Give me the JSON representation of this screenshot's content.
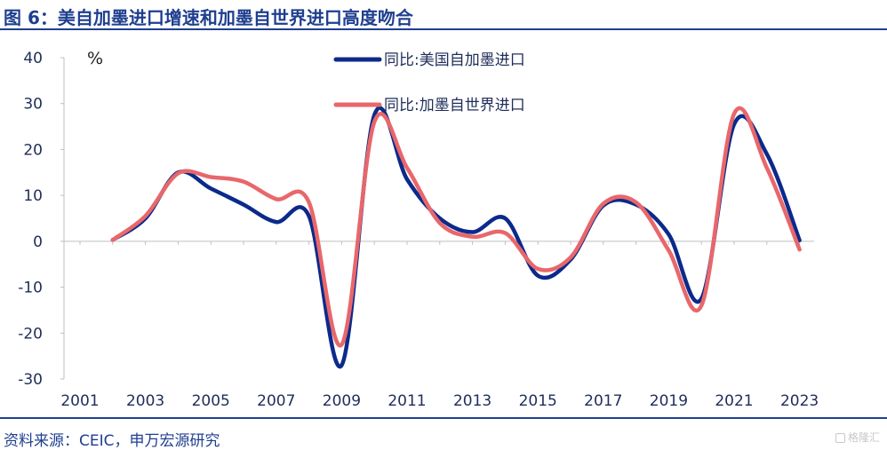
{
  "header": {
    "title": "图 6：美自加墨进口增速和加墨自世界进口高度吻合"
  },
  "footer": {
    "source": "资料来源：CEIC，申万宏源研究",
    "watermark": "格隆汇"
  },
  "colors": {
    "series1": "#0b2a8a",
    "series2": "#e8676b",
    "brand": "#1f3f8f",
    "axis": "#bfbfbf",
    "text": "#1f2d5a"
  },
  "chart_data": {
    "type": "line",
    "title": "",
    "xlabel": "",
    "ylabel": "%",
    "ylim": [
      -30,
      40
    ],
    "yticks": [
      40,
      30,
      20,
      10,
      0,
      -10,
      -20,
      -30
    ],
    "xlim": [
      2001,
      2023
    ],
    "xticks": [
      2001,
      2003,
      2005,
      2007,
      2009,
      2011,
      2013,
      2015,
      2017,
      2019,
      2021,
      2023
    ],
    "grid": false,
    "legend_position": "top",
    "x": [
      2002,
      2003,
      2004,
      2005,
      2006,
      2007,
      2008,
      2009,
      2010,
      2011,
      2012,
      2013,
      2014,
      2015,
      2016,
      2017,
      2018,
      2019,
      2020,
      2021,
      2022,
      2023
    ],
    "series": [
      {
        "name": "同比:美国自加墨进口",
        "values": [
          0.3,
          5.0,
          15.0,
          11.5,
          8.0,
          4.2,
          5.5,
          -27.0,
          27.5,
          13.5,
          5.0,
          2.0,
          5.0,
          -7.5,
          -4.0,
          7.8,
          8.0,
          1.5,
          -12.5,
          25.5,
          19.0,
          0.2
        ]
      },
      {
        "name": "同比:加墨自世界进口",
        "values": [
          0.3,
          5.5,
          14.8,
          14.0,
          13.0,
          9.2,
          8.5,
          -22.5,
          26.0,
          16.0,
          4.0,
          1.0,
          1.8,
          -6.0,
          -3.5,
          8.2,
          8.5,
          -2.0,
          -14.0,
          27.8,
          16.0,
          -1.8
        ]
      }
    ]
  }
}
